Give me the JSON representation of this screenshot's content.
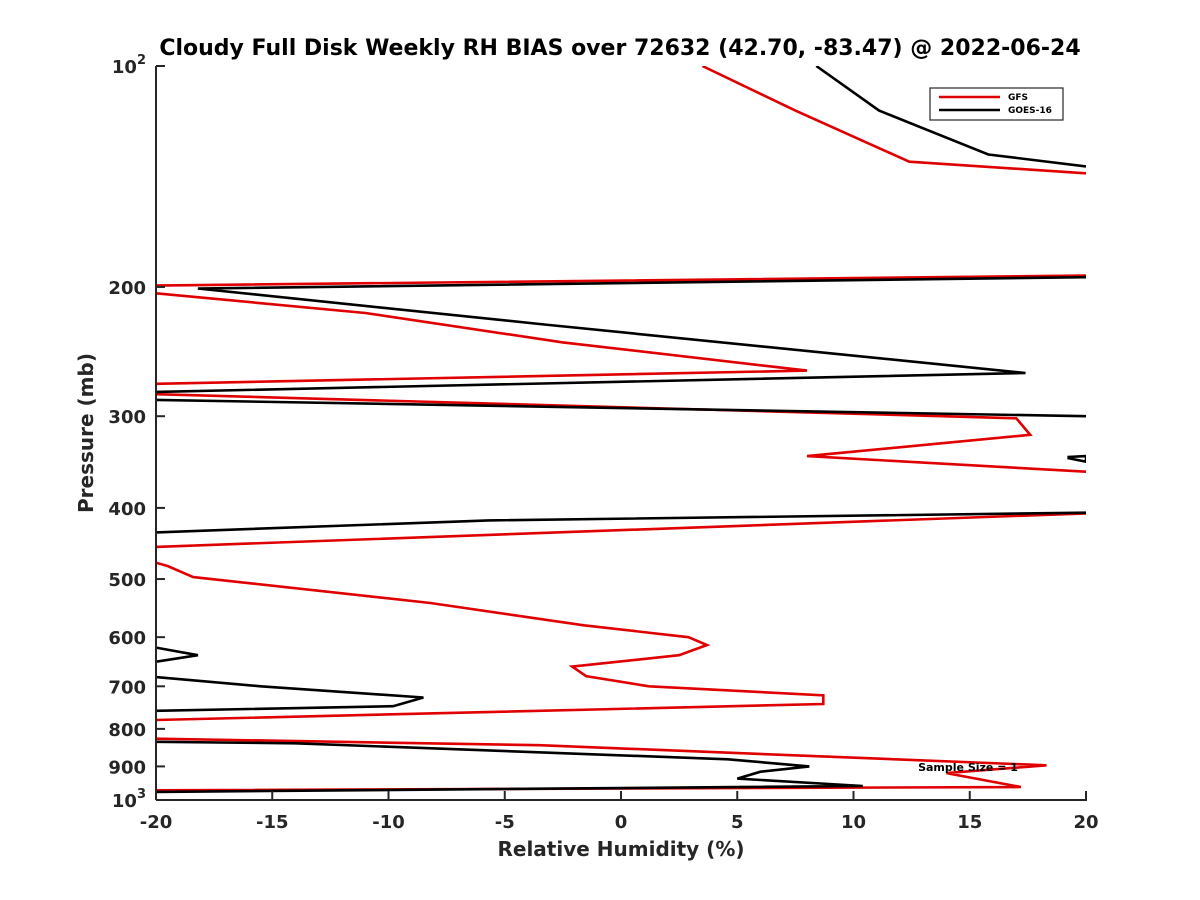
{
  "chart_data": {
    "type": "line",
    "title": "Cloudy Full Disk Weekly RH BIAS over 72632 (42.70, -83.47) @ 2022-06-24",
    "xlabel": "Relative Humidity (%)",
    "ylabel": "Pressure (mb)",
    "xlim": [
      -20,
      20
    ],
    "ylim": [
      100,
      1000
    ],
    "y_scale": "log",
    "y_reversed": true,
    "grid": false,
    "legend_position": "top-right",
    "x_ticks": [
      "-20",
      "-15",
      "-10",
      "-5",
      "0",
      "5",
      "10",
      "15",
      "20"
    ],
    "y_ticks": [
      {
        "value": 100,
        "base": "10",
        "exp": "2"
      },
      {
        "value": 200,
        "label": "200"
      },
      {
        "value": 300,
        "label": "300"
      },
      {
        "value": 400,
        "label": "400"
      },
      {
        "value": 500,
        "label": "500"
      },
      {
        "value": 600,
        "label": "600"
      },
      {
        "value": 700,
        "label": "700"
      },
      {
        "value": 800,
        "label": "800"
      },
      {
        "value": 900,
        "label": "900"
      },
      {
        "value": 1000,
        "base": "10",
        "exp": "3"
      }
    ],
    "annotation": "Sample Size = 1",
    "series": [
      {
        "name": "GFS",
        "color": "#e00000",
        "points": [
          [
            3.5,
            100
          ],
          [
            7.5,
            115
          ],
          [
            12.4,
            135
          ],
          [
            20,
            140
          ],
          [
            null,
            null
          ],
          [
            20,
            193
          ],
          [
            -19.5,
            199
          ],
          [
            -20,
            199
          ],
          [
            null,
            null
          ],
          [
            -20,
            204
          ],
          [
            -11,
            217
          ],
          [
            -2.5,
            238
          ],
          [
            8,
            260
          ],
          [
            -20,
            271
          ],
          [
            null,
            null
          ],
          [
            -20,
            280
          ],
          [
            17,
            302
          ],
          [
            17.6,
            318
          ],
          [
            8,
            340
          ],
          [
            20,
            357
          ],
          [
            null,
            null
          ],
          [
            20,
            407
          ],
          [
            -20,
            452
          ],
          [
            null,
            null
          ],
          [
            -20,
            475
          ],
          [
            -19.5,
            480
          ],
          [
            -18.4,
            497
          ],
          [
            -8.2,
            539
          ],
          [
            -1.6,
            578
          ],
          [
            2.9,
            600
          ],
          [
            3.7,
            615
          ],
          [
            2.5,
            635
          ],
          [
            -2.1,
            658
          ],
          [
            -1.5,
            678
          ],
          [
            1.2,
            700
          ],
          [
            8.7,
            720
          ],
          [
            8.7,
            740
          ],
          [
            -20,
            778
          ],
          [
            null,
            null
          ],
          [
            -20,
            825
          ],
          [
            -3.5,
            842
          ],
          [
            18.3,
            897
          ],
          [
            14,
            919
          ],
          [
            17.2,
            960
          ],
          [
            -20,
            970
          ]
        ]
      },
      {
        "name": "GOES-16",
        "color": "#000000",
        "points": [
          [
            8.4,
            100
          ],
          [
            11.1,
            115
          ],
          [
            15.8,
            132
          ],
          [
            20,
            137
          ],
          [
            null,
            null
          ],
          [
            20,
            194
          ],
          [
            -18.2,
            201
          ],
          [
            -3.3,
            225
          ],
          [
            17.4,
            262
          ],
          [
            -20,
            278
          ],
          [
            null,
            null
          ],
          [
            -20,
            285
          ],
          [
            20,
            300
          ],
          [
            null,
            null
          ],
          [
            19.2,
            341
          ],
          [
            20,
            340
          ],
          [
            20,
            346
          ],
          [
            19.2,
            342
          ],
          [
            null,
            null
          ],
          [
            20,
            406
          ],
          [
            -5.7,
            416
          ],
          [
            -20,
            432
          ],
          [
            null,
            null
          ],
          [
            -20,
            620
          ],
          [
            -18.2,
            635
          ],
          [
            -20,
            648
          ],
          [
            null,
            null
          ],
          [
            -20,
            680
          ],
          [
            -15.5,
            700
          ],
          [
            -8.5,
            725
          ],
          [
            -9.8,
            745
          ],
          [
            -20,
            756
          ],
          [
            null,
            null
          ],
          [
            -20,
            833
          ],
          [
            -14,
            837
          ],
          [
            4.6,
            880
          ],
          [
            8.1,
            900
          ],
          [
            6,
            915
          ],
          [
            5,
            935
          ],
          [
            10.4,
            957
          ],
          [
            -20,
            975
          ]
        ]
      }
    ]
  }
}
